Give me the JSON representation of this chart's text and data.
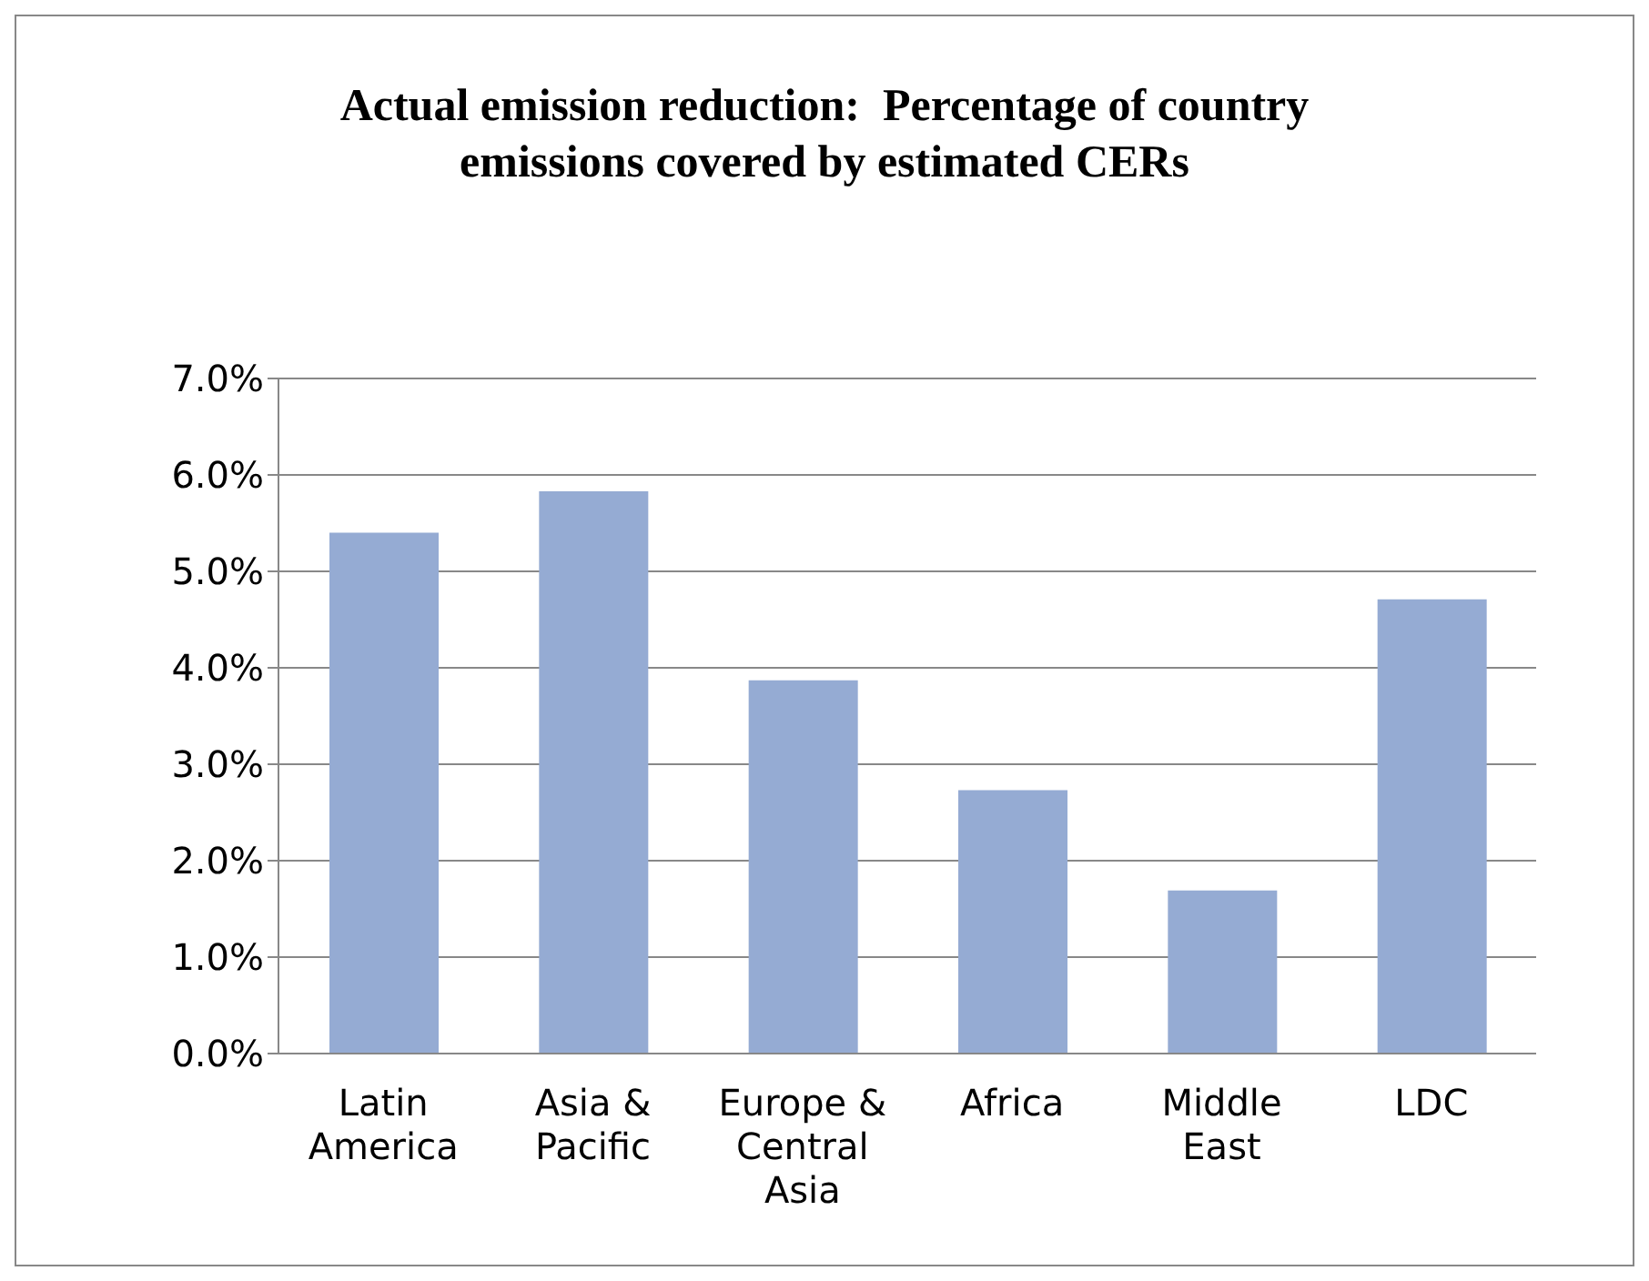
{
  "chart_data": {
    "type": "bar",
    "title": "Actual emission reduction:  Percentage of country emissions covered by estimated CERs",
    "categories": [
      "Latin America",
      "Asia & Pacific",
      "Europe & Central Asia",
      "Africa",
      "Middle East",
      "LDC"
    ],
    "values": [
      5.4,
      5.83,
      3.87,
      2.73,
      1.69,
      4.71
    ],
    "color": "#95abd3",
    "ylim": [
      0,
      7
    ],
    "yticks": [
      {
        "value": 0,
        "label": "0.0%"
      },
      {
        "value": 1,
        "label": "1.0%"
      },
      {
        "value": 2,
        "label": "2.0%"
      },
      {
        "value": 3,
        "label": "3.0%"
      },
      {
        "value": 4,
        "label": "4.0%"
      },
      {
        "value": 5,
        "label": "5.0%"
      },
      {
        "value": 6,
        "label": "6.0%"
      },
      {
        "value": 7,
        "label": "7.0%"
      }
    ],
    "grid": "y",
    "legend": false
  }
}
